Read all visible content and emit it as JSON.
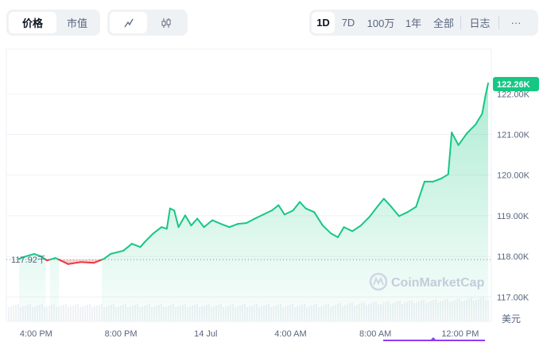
{
  "toolbar": {
    "metric_tabs": [
      {
        "label": "价格",
        "active": true
      },
      {
        "label": "市值",
        "active": false
      }
    ],
    "chart_type_tabs": [
      {
        "icon": "line-chart-icon",
        "active": true
      },
      {
        "icon": "candlestick-icon",
        "active": false
      }
    ],
    "range_tabs": [
      {
        "label": "1D",
        "active": true
      },
      {
        "label": "7D"
      },
      {
        "label": "100万"
      },
      {
        "label": "1年"
      },
      {
        "label": "全部"
      }
    ],
    "log_label": "日志",
    "more_label": "···"
  },
  "chart_data": {
    "type": "line",
    "currency_label": "美元",
    "watermark": "CoinMarketCap",
    "current_price_label": "122.26K",
    "baseline_label": "117.92千",
    "baseline": 117.92,
    "ylim": [
      116.4,
      123.1
    ],
    "yticks": [
      {
        "v": 117,
        "label": "117.00K"
      },
      {
        "v": 118,
        "label": "118.00K"
      },
      {
        "v": 119,
        "label": "119.00K"
      },
      {
        "v": 120,
        "label": "120.00K"
      },
      {
        "v": 121,
        "label": "121.00K"
      },
      {
        "v": 122,
        "label": "122.00K"
      }
    ],
    "xticks": [
      {
        "t": "13 Jul 16:00",
        "label": "4:00 PM"
      },
      {
        "t": "13 Jul 20:00",
        "label": "8:00 PM"
      },
      {
        "t": "14 Jul 00:00",
        "label": "14 Jul"
      },
      {
        "t": "14 Jul 04:00",
        "label": "4:00 AM"
      },
      {
        "t": "14 Jul 08:00",
        "label": "8:00 AM"
      },
      {
        "t": "14 Jul 12:00",
        "label": "12:00 PM"
      }
    ],
    "xlim": [
      "13 Jul 14:36",
      "14 Jul 13:28"
    ],
    "colors": {
      "up": "#16c784",
      "down": "#ea3943",
      "accent": "#8c3cf7"
    },
    "grid": true,
    "series": [
      {
        "unit": "K USD",
        "points": [
          [
            "13 Jul 15:12",
            117.94
          ],
          [
            "13 Jul 15:31",
            118.0
          ],
          [
            "13 Jul 15:55",
            118.06
          ],
          [
            "13 Jul 16:14",
            118.0
          ],
          [
            "13 Jul 16:31",
            117.9
          ],
          [
            "13 Jul 16:55",
            117.96
          ],
          [
            "13 Jul 17:31",
            117.81
          ],
          [
            "13 Jul 18:07",
            117.86
          ],
          [
            "13 Jul 18:43",
            117.84
          ],
          [
            "13 Jul 19:12",
            117.94
          ],
          [
            "13 Jul 19:31",
            118.06
          ],
          [
            "13 Jul 20:07",
            118.14
          ],
          [
            "13 Jul 20:31",
            118.31
          ],
          [
            "13 Jul 20:55",
            118.23
          ],
          [
            "13 Jul 21:07",
            118.35
          ],
          [
            "13 Jul 21:31",
            118.56
          ],
          [
            "13 Jul 21:55",
            118.72
          ],
          [
            "13 Jul 22:10",
            118.68
          ],
          [
            "13 Jul 22:19",
            119.18
          ],
          [
            "13 Jul 22:31",
            119.13
          ],
          [
            "13 Jul 22:43",
            118.72
          ],
          [
            "13 Jul 23:02",
            119.01
          ],
          [
            "13 Jul 23:19",
            118.76
          ],
          [
            "13 Jul 23:36",
            118.93
          ],
          [
            "13 Jul 23:55",
            118.72
          ],
          [
            "14 Jul 00:19",
            118.89
          ],
          [
            "14 Jul 00:43",
            118.8
          ],
          [
            "14 Jul 01:07",
            118.72
          ],
          [
            "14 Jul 01:31",
            118.8
          ],
          [
            "14 Jul 01:55",
            118.82
          ],
          [
            "14 Jul 02:19",
            118.93
          ],
          [
            "14 Jul 02:43",
            119.03
          ],
          [
            "14 Jul 03:07",
            119.13
          ],
          [
            "14 Jul 03:26",
            119.26
          ],
          [
            "14 Jul 03:43",
            119.03
          ],
          [
            "14 Jul 04:07",
            119.13
          ],
          [
            "14 Jul 04:26",
            119.34
          ],
          [
            "14 Jul 04:43",
            119.18
          ],
          [
            "14 Jul 05:07",
            119.09
          ],
          [
            "14 Jul 05:31",
            118.76
          ],
          [
            "14 Jul 05:55",
            118.56
          ],
          [
            "14 Jul 06:14",
            118.47
          ],
          [
            "14 Jul 06:31",
            118.72
          ],
          [
            "14 Jul 06:55",
            118.62
          ],
          [
            "14 Jul 07:19",
            118.76
          ],
          [
            "14 Jul 07:43",
            118.97
          ],
          [
            "14 Jul 08:07",
            119.24
          ],
          [
            "14 Jul 08:24",
            119.42
          ],
          [
            "14 Jul 08:43",
            119.24
          ],
          [
            "14 Jul 09:07",
            118.99
          ],
          [
            "14 Jul 09:31",
            119.09
          ],
          [
            "14 Jul 09:55",
            119.22
          ],
          [
            "14 Jul 10:19",
            119.84
          ],
          [
            "14 Jul 10:43",
            119.84
          ],
          [
            "14 Jul 11:07",
            119.92
          ],
          [
            "14 Jul 11:26",
            120.02
          ],
          [
            "14 Jul 11:36",
            121.05
          ],
          [
            "14 Jul 11:55",
            120.74
          ],
          [
            "14 Jul 12:19",
            121.03
          ],
          [
            "14 Jul 12:43",
            121.24
          ],
          [
            "14 Jul 13:02",
            121.51
          ],
          [
            "14 Jul 13:12",
            121.98
          ],
          [
            "14 Jul 13:19",
            122.26
          ]
        ]
      }
    ]
  }
}
